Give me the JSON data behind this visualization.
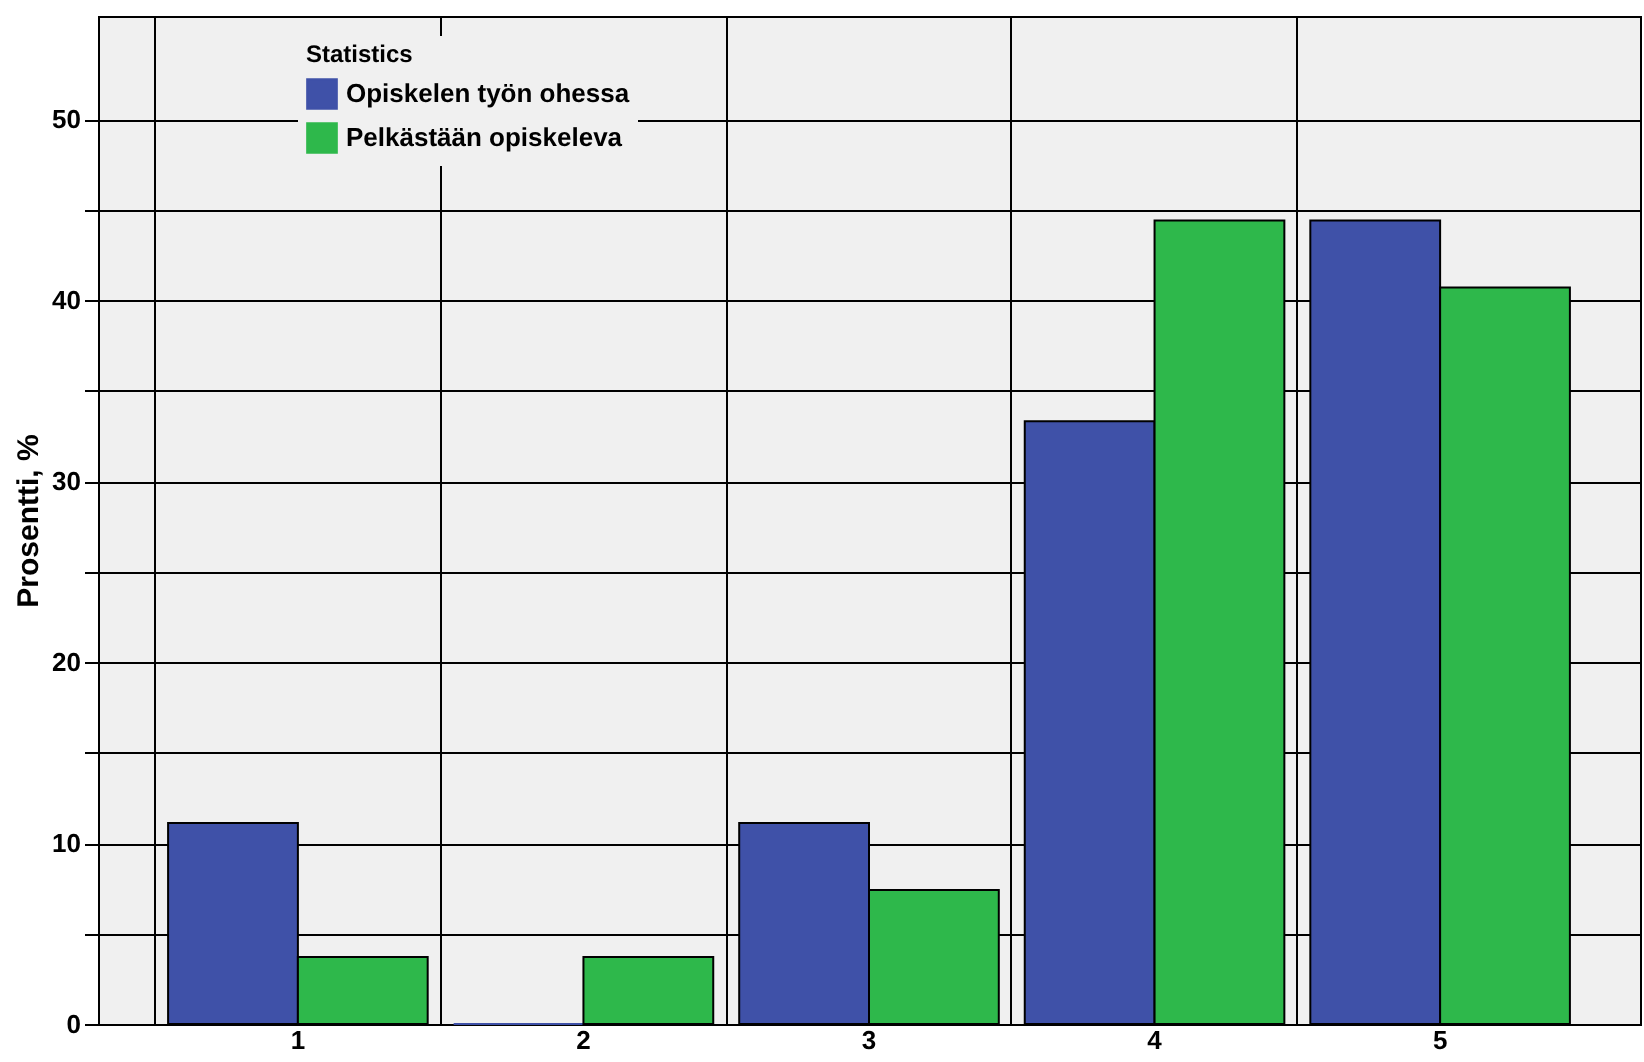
{
  "chart_data": {
    "type": "bar",
    "ylabel": "Prosentti, %",
    "legend_title": "Statistics",
    "categories": [
      "1",
      "2",
      "3",
      "4",
      "5"
    ],
    "series": [
      {
        "name": "Opiskelen työn ohessa",
        "color": "#3f51a8",
        "values": [
          11.1,
          0,
          11.1,
          33.3,
          44.4
        ]
      },
      {
        "name": "Pelkästään opiskeleva",
        "color": "#2eb84b",
        "values": [
          3.7,
          3.7,
          7.4,
          44.4,
          40.7
        ]
      }
    ],
    "ylim": [
      0,
      55.7
    ],
    "yticks": [
      0,
      {
        "value": 5,
        "label": null
      },
      10,
      {
        "value": 15,
        "label": null
      },
      20,
      {
        "value": 25,
        "label": null
      },
      30,
      {
        "value": 35,
        "label": null
      },
      40,
      {
        "value": 45,
        "label": null
      },
      50
    ],
    "grid": true,
    "legend": "top left"
  }
}
